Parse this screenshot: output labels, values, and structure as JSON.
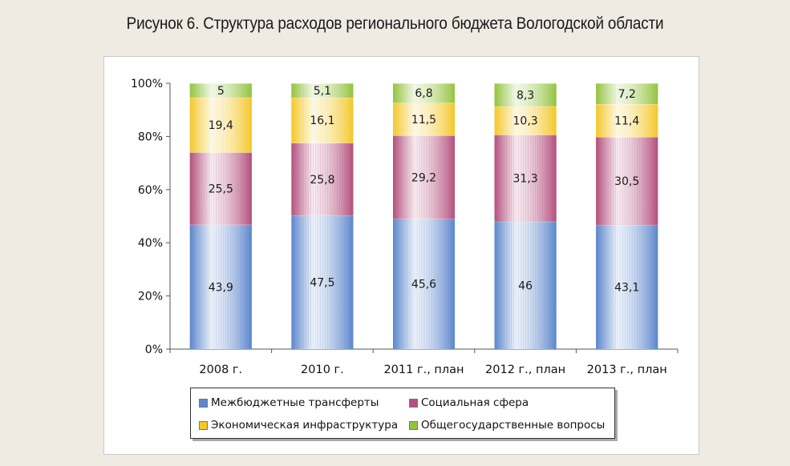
{
  "figure_title": "Рисунок 6. Структура расходов регионального бюджета Вологодской области",
  "chart_data": {
    "type": "bar",
    "stacked": true,
    "percent_stacked": true,
    "categories": [
      "2008 г.",
      "2010 г.",
      "2011 г., план",
      "2012 г., план",
      "2013 г., план"
    ],
    "series": [
      {
        "name": "Межбюджетные трансферты",
        "values": [
          43.9,
          47.5,
          45.6,
          46,
          43.1
        ],
        "labels": [
          "43,9",
          "47,5",
          "45,6",
          "46",
          "43,1"
        ],
        "color": "#5b86cc"
      },
      {
        "name": "Социальная сфера",
        "values": [
          25.5,
          25.8,
          29.2,
          31.3,
          30.5
        ],
        "labels": [
          "25,5",
          "25,8",
          "29,2",
          "31,3",
          "30,5"
        ],
        "color": "#b4507d"
      },
      {
        "name": "Экономическая инфраструктура",
        "values": [
          19.4,
          16.1,
          11.5,
          10.3,
          11.4
        ],
        "labels": [
          "19,4",
          "16,1",
          "11,5",
          "10,3",
          "11,4"
        ],
        "color": "#f4c82a"
      },
      {
        "name": "Общегосударственные вопросы",
        "values": [
          5,
          5.1,
          6.8,
          8.3,
          7.2
        ],
        "labels": [
          "5",
          "5,1",
          "6,8",
          "8,3",
          "7,2"
        ],
        "color": "#93c33e"
      }
    ],
    "y_ticks": [
      "0%",
      "20%",
      "40%",
      "60%",
      "80%",
      "100%"
    ],
    "ylim": [
      0,
      100
    ],
    "grid": false,
    "legend_position": "bottom"
  }
}
